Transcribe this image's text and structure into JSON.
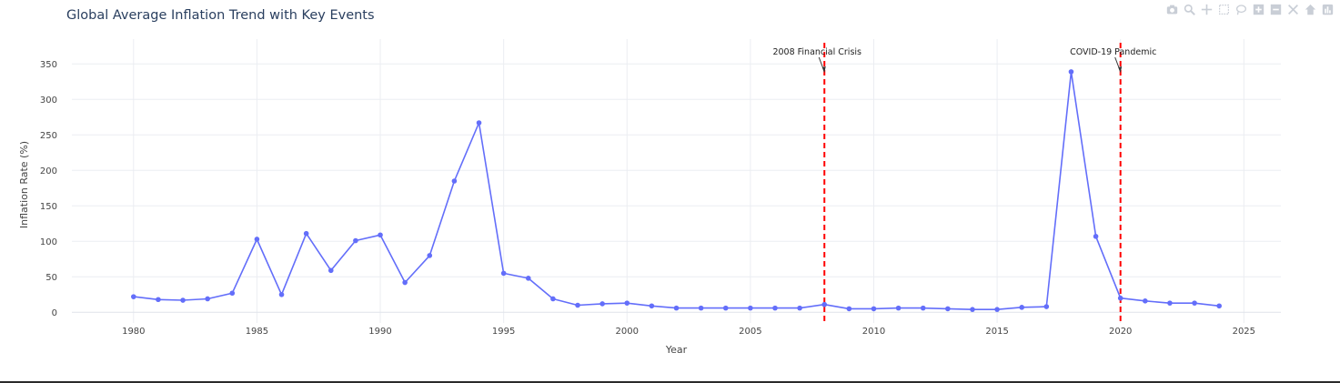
{
  "toolbar": {
    "icons": [
      "camera-icon",
      "zoom-icon",
      "pan-icon",
      "box-select-icon",
      "lasso-select-icon",
      "zoom-in-icon",
      "zoom-out-icon",
      "autoscale-icon",
      "home-icon",
      "plotly-logo-icon"
    ],
    "icon_color": "#c9ced6"
  },
  "chart_data": {
    "type": "line",
    "title": "Global Average Inflation Trend with Key Events",
    "xlabel": "Year",
    "ylabel": "Inflation Rate (%)",
    "xlim": [
      1977.5,
      2026.5
    ],
    "ylim": [
      -15,
      385
    ],
    "x_ticks": [
      1980,
      1985,
      1990,
      1995,
      2000,
      2005,
      2010,
      2015,
      2020,
      2025
    ],
    "y_ticks": [
      0,
      50,
      100,
      150,
      200,
      250,
      300,
      350
    ],
    "grid": true,
    "series": [
      {
        "color": "#636efa",
        "x": [
          1980,
          1981,
          1982,
          1983,
          1984,
          1985,
          1986,
          1987,
          1988,
          1989,
          1990,
          1991,
          1992,
          1993,
          1994,
          1995,
          1996,
          1997,
          1998,
          1999,
          2000,
          2001,
          2002,
          2003,
          2004,
          2005,
          2006,
          2007,
          2008,
          2009,
          2010,
          2011,
          2012,
          2013,
          2014,
          2015,
          2016,
          2017,
          2018,
          2019,
          2020,
          2021,
          2022,
          2023,
          2024
        ],
        "y": [
          22,
          18,
          17,
          19,
          27,
          103,
          25,
          111,
          59,
          101,
          109,
          42,
          80,
          185,
          267,
          55,
          48,
          19,
          10,
          12,
          13,
          9,
          6,
          6,
          6,
          6,
          6,
          6,
          11,
          5,
          5,
          6,
          6,
          5,
          4,
          4,
          7,
          8,
          339,
          107,
          20,
          16,
          13,
          13,
          9
        ]
      }
    ],
    "events": [
      {
        "x": 2008,
        "label": "2008 Financial Crisis",
        "line_color": "#ff0000"
      },
      {
        "x": 2020,
        "label": "COVID-19 Pandemic",
        "line_color": "#ff0000"
      }
    ]
  }
}
